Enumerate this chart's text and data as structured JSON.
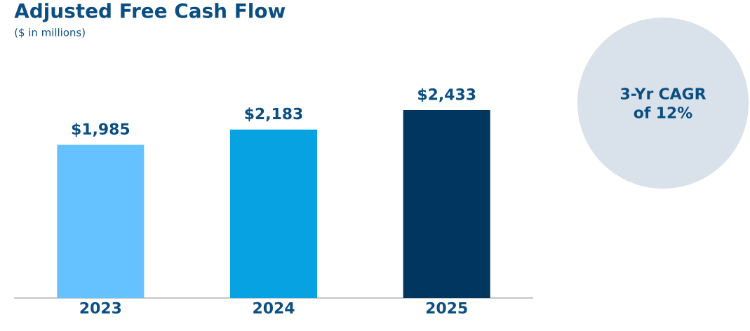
{
  "chart_data": {
    "type": "bar",
    "title": "Adjusted Free Cash Flow",
    "subtitle": "($ in millions)",
    "categories": [
      "2023",
      "2024",
      "2025"
    ],
    "values": [
      1985,
      2183,
      2433
    ],
    "colors": [
      "#66c2ff",
      "#06a2e2",
      "#003660"
    ],
    "value_labels": [
      "$1,985",
      "$2,183",
      "$2,433"
    ],
    "tick_labels": "x",
    "annotations": [
      "3-Yr CAGR of 12%"
    ]
  }
}
